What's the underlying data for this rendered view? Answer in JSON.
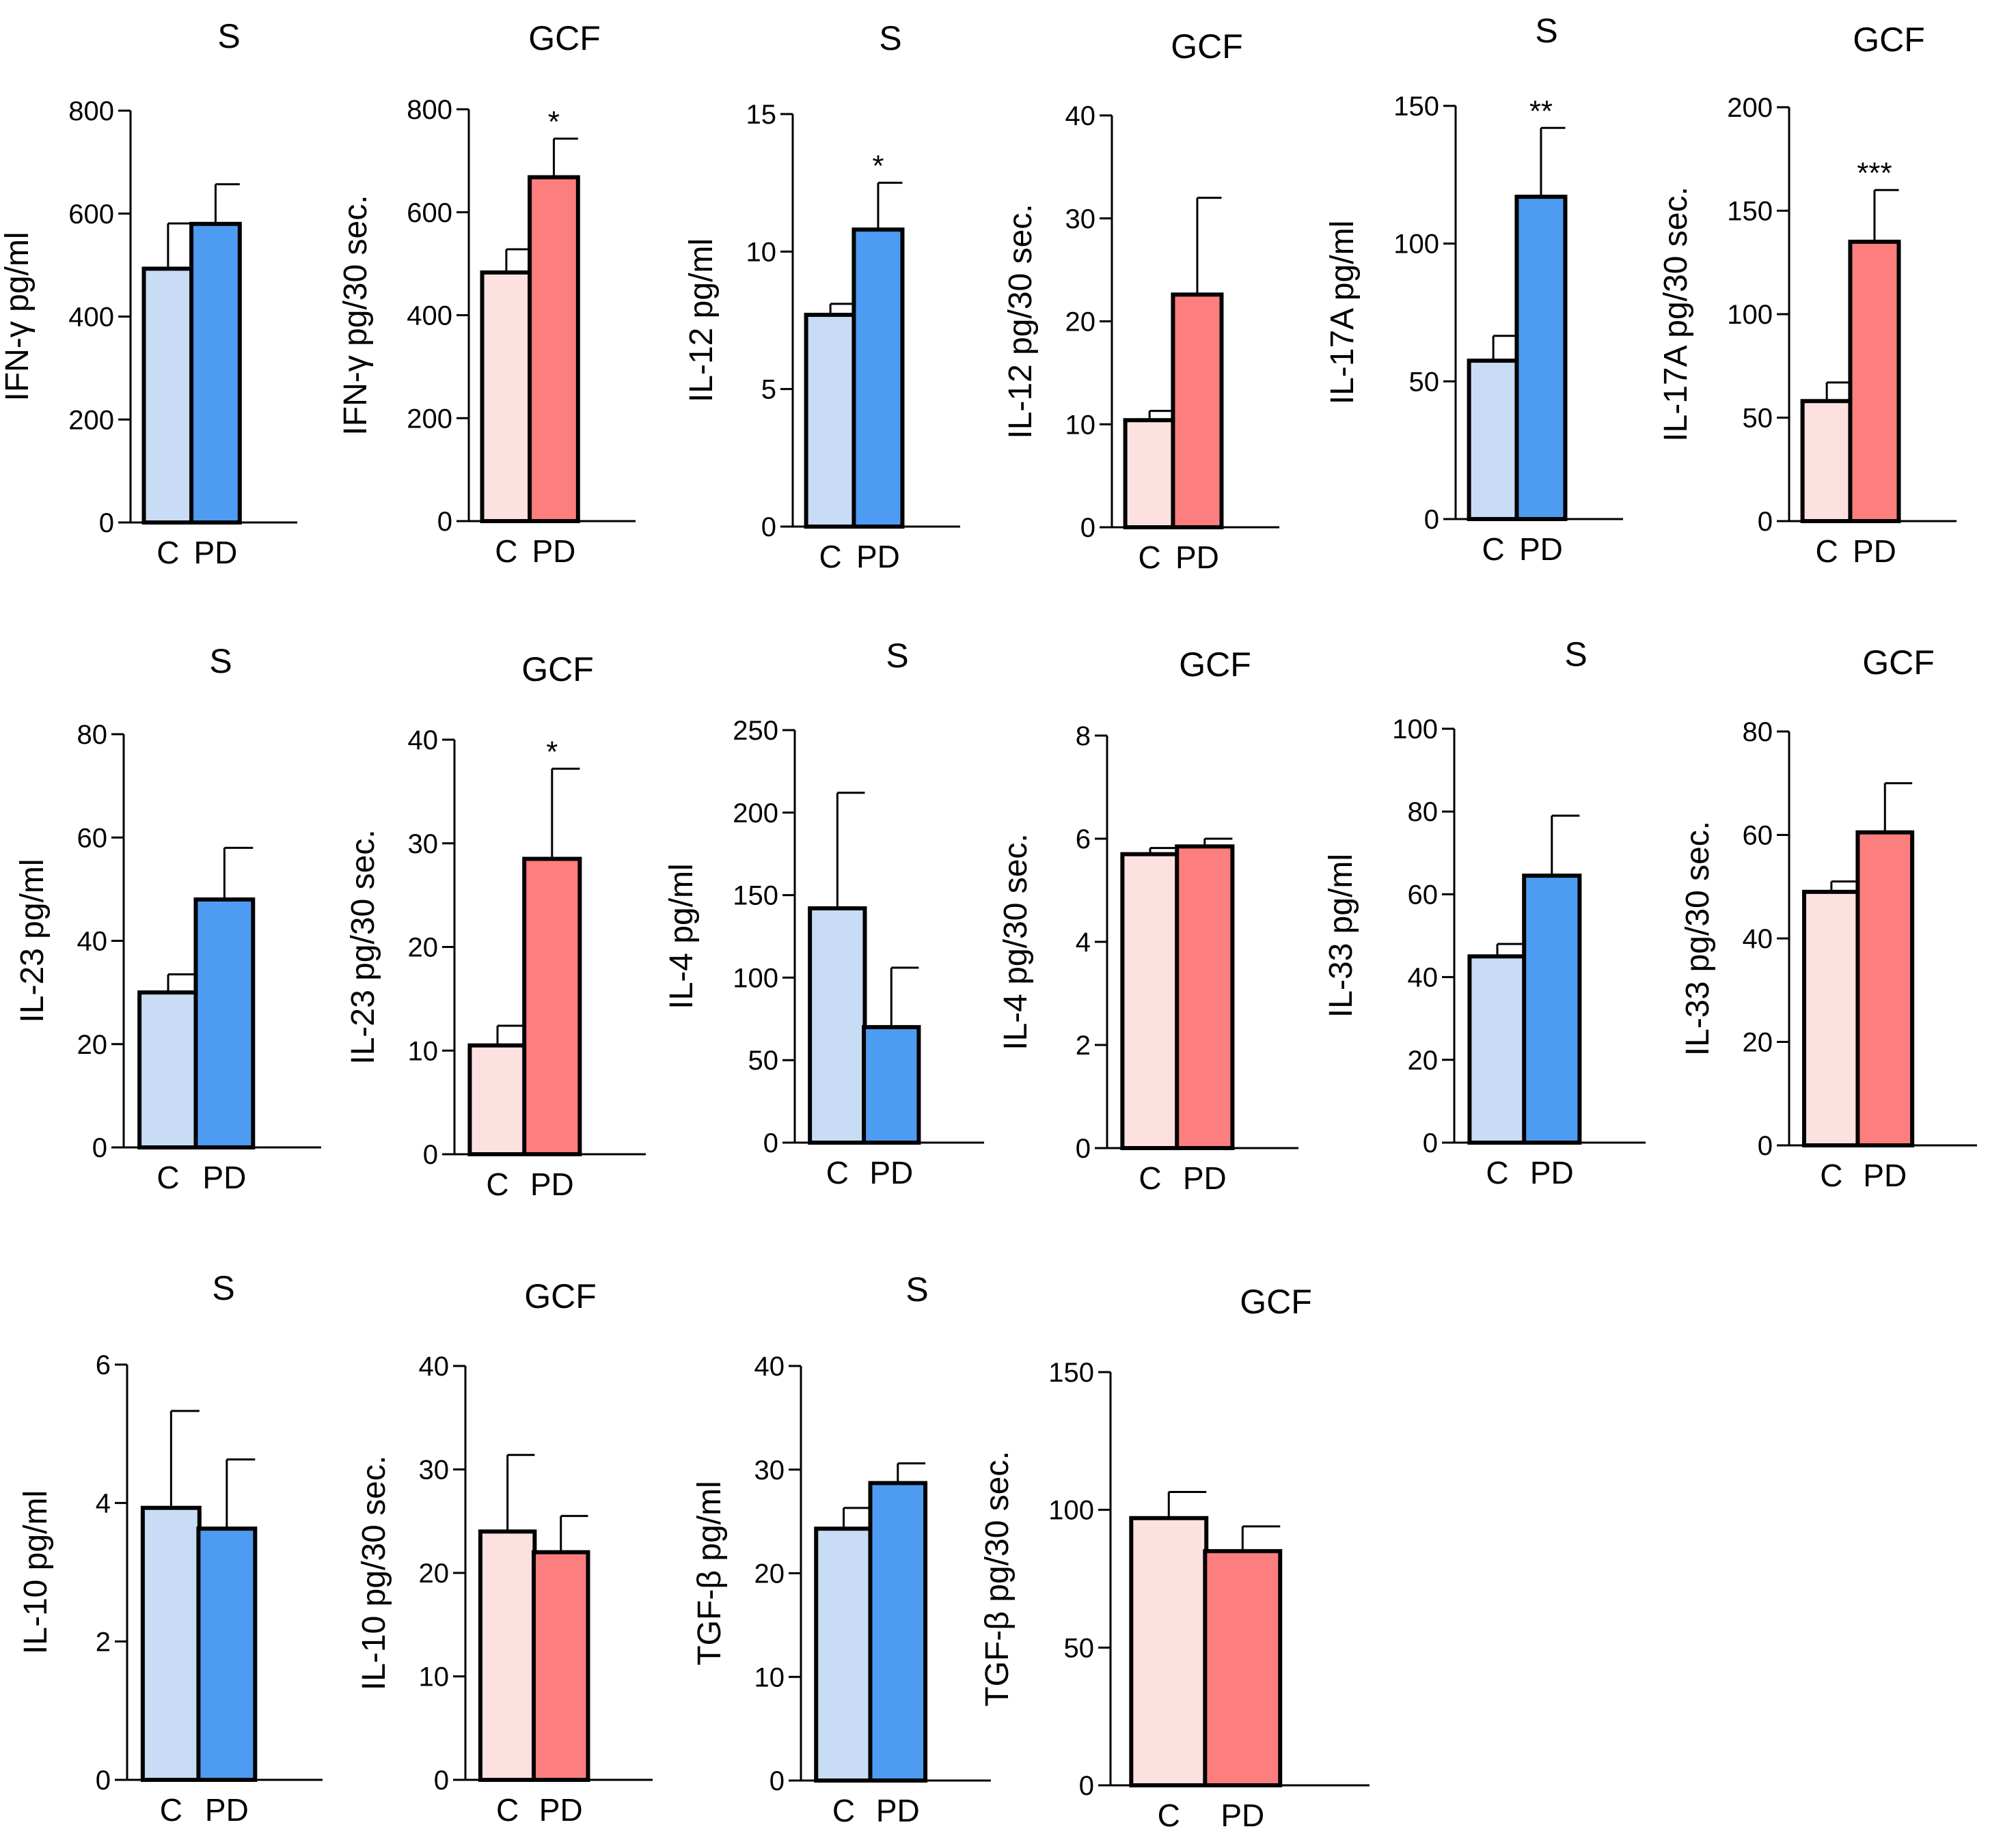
{
  "colors": {
    "s_control": "#c9dcf5",
    "s_pd": "#4d9cf2",
    "gcf_control": "#fde1e1",
    "gcf_pd": "#fc7e7e",
    "outline": "#000000"
  },
  "chart_data": [
    {
      "type": "bar",
      "title": "S",
      "ylabel": "IFN-γ pg/ml",
      "categories": [
        "C",
        "PD"
      ],
      "values": [
        493,
        580
      ],
      "errors": [
        88,
        77
      ],
      "ylim": [
        0,
        800
      ],
      "yticks": [
        0,
        200,
        400,
        600,
        800
      ],
      "significance": "",
      "group": "s"
    },
    {
      "type": "bar",
      "title": "GCF",
      "ylabel": "IFN-γ pg/30 sec.",
      "categories": [
        "C",
        "PD"
      ],
      "values": [
        483,
        668
      ],
      "errors": [
        45,
        75
      ],
      "ylim": [
        0,
        800
      ],
      "yticks": [
        0,
        200,
        400,
        600,
        800
      ],
      "significance": "*",
      "group": "gcf"
    },
    {
      "type": "bar",
      "title": "S",
      "ylabel": "IL-12 pg/ml",
      "categories": [
        "C",
        "PD"
      ],
      "values": [
        7.7,
        10.8
      ],
      "errors": [
        0.4,
        1.7
      ],
      "ylim": [
        0,
        15
      ],
      "yticks": [
        0,
        5,
        10,
        15
      ],
      "significance": "*",
      "group": "s"
    },
    {
      "type": "bar",
      "title": "GCF",
      "ylabel": "IL-12 pg/30 sec.",
      "categories": [
        "C",
        "PD"
      ],
      "values": [
        10.4,
        22.6
      ],
      "errors": [
        0.9,
        9.4
      ],
      "ylim": [
        0,
        40
      ],
      "yticks": [
        0,
        10,
        20,
        30,
        40
      ],
      "significance": "",
      "group": "gcf"
    },
    {
      "type": "bar",
      "title": "S",
      "ylabel": "IL-17A pg/ml",
      "categories": [
        "C",
        "PD"
      ],
      "values": [
        57.5,
        117
      ],
      "errors": [
        9,
        25
      ],
      "ylim": [
        0,
        150
      ],
      "yticks": [
        0,
        50,
        100,
        150
      ],
      "significance": "**",
      "group": "s"
    },
    {
      "type": "bar",
      "title": "GCF",
      "ylabel": "IL-17A pg/30 sec.",
      "categories": [
        "C",
        "PD"
      ],
      "values": [
        58,
        135
      ],
      "errors": [
        9,
        25
      ],
      "ylim": [
        0,
        200
      ],
      "yticks": [
        0,
        50,
        100,
        150,
        200
      ],
      "significance": "***",
      "group": "gcf"
    },
    {
      "type": "bar",
      "title": "S",
      "ylabel": "IL-23 pg/ml",
      "categories": [
        "C",
        "PD"
      ],
      "values": [
        30,
        48
      ],
      "errors": [
        3.5,
        10
      ],
      "ylim": [
        0,
        80
      ],
      "yticks": [
        0,
        20,
        40,
        60,
        80
      ],
      "significance": "",
      "group": "s"
    },
    {
      "type": "bar",
      "title": "GCF",
      "ylabel": "IL-23 pg/30 sec.",
      "categories": [
        "C",
        "PD"
      ],
      "values": [
        10.5,
        28.5
      ],
      "errors": [
        1.9,
        8.7
      ],
      "ylim": [
        0,
        40
      ],
      "yticks": [
        0,
        10,
        20,
        30,
        40
      ],
      "significance": "*",
      "group": "gcf"
    },
    {
      "type": "bar",
      "title": "S",
      "ylabel": "IL-4 pg/ml",
      "categories": [
        "C",
        "PD"
      ],
      "values": [
        142,
        70
      ],
      "errors": [
        70,
        36
      ],
      "ylim": [
        0,
        250
      ],
      "yticks": [
        0,
        50,
        100,
        150,
        200,
        250
      ],
      "significance": "",
      "group": "s"
    },
    {
      "type": "bar",
      "title": "GCF",
      "ylabel": "IL-4 pg/30 sec.",
      "categories": [
        "C",
        "PD"
      ],
      "values": [
        5.7,
        5.85
      ],
      "errors": [
        0.12,
        0.15
      ],
      "ylim": [
        0,
        8
      ],
      "yticks": [
        0,
        2,
        4,
        6,
        8
      ],
      "significance": "",
      "group": "gcf"
    },
    {
      "type": "bar",
      "title": "S",
      "ylabel": "IL-33 pg/ml",
      "categories": [
        "C",
        "PD"
      ],
      "values": [
        45,
        64.5
      ],
      "errors": [
        3,
        14.5
      ],
      "ylim": [
        0,
        100
      ],
      "yticks": [
        0,
        20,
        40,
        60,
        80,
        100
      ],
      "significance": "",
      "group": "s"
    },
    {
      "type": "bar",
      "title": "GCF",
      "ylabel": "IL-33 pg/30 sec.",
      "categories": [
        "C",
        "PD"
      ],
      "values": [
        49,
        60.5
      ],
      "errors": [
        2,
        9.5
      ],
      "ylim": [
        0,
        80
      ],
      "yticks": [
        0,
        20,
        40,
        60,
        80
      ],
      "significance": "",
      "group": "gcf"
    },
    {
      "type": "bar",
      "title": "S",
      "ylabel": "IL-10 pg/ml",
      "categories": [
        "C",
        "PD"
      ],
      "values": [
        3.93,
        3.63
      ],
      "errors": [
        1.4,
        1.0
      ],
      "ylim": [
        0,
        6
      ],
      "yticks": [
        0,
        2,
        4,
        6
      ],
      "significance": "",
      "group": "s"
    },
    {
      "type": "bar",
      "title": "GCF",
      "ylabel": "IL-10 pg/30 sec.",
      "categories": [
        "C",
        "PD"
      ],
      "values": [
        24,
        22
      ],
      "errors": [
        7.4,
        3.5
      ],
      "ylim": [
        0,
        40
      ],
      "yticks": [
        0,
        10,
        20,
        30,
        40
      ],
      "significance": "",
      "group": "gcf"
    },
    {
      "type": "bar",
      "title": "S",
      "ylabel": "TGF-β pg/ml",
      "categories": [
        "C",
        "PD"
      ],
      "values": [
        24.3,
        28.7
      ],
      "errors": [
        2,
        1.9
      ],
      "ylim": [
        0,
        40
      ],
      "yticks": [
        0,
        10,
        20,
        30,
        40
      ],
      "significance": "",
      "group": "s"
    },
    {
      "type": "bar",
      "title": "GCF",
      "ylabel": "TGF-β pg/30 sec.",
      "categories": [
        "C",
        "PD"
      ],
      "values": [
        97,
        85
      ],
      "errors": [
        9.5,
        9
      ],
      "ylim": [
        0,
        150
      ],
      "yticks": [
        0,
        50,
        100,
        150
      ],
      "significance": "",
      "group": "gcf"
    }
  ]
}
